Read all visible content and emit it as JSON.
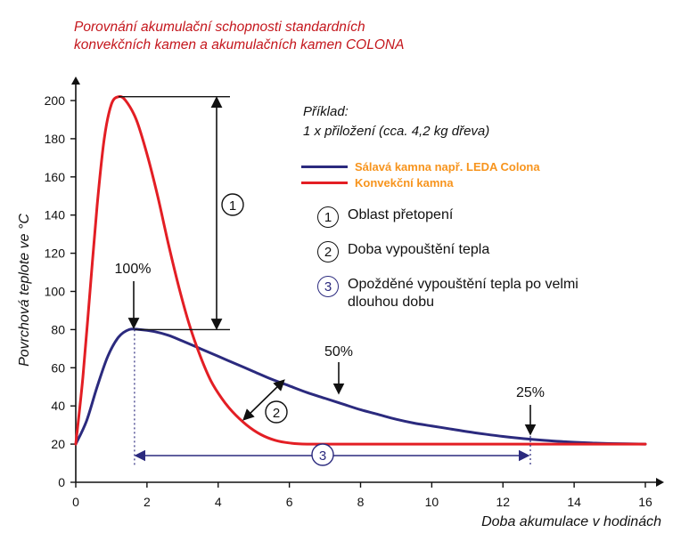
{
  "title_lines": [
    "Porovnání akumulační schopnosti standardních",
    "konvekčních kamen a akumulačních kamen COLONA"
  ],
  "colors": {
    "title": "#c4161c",
    "legend_text": "#f7941d",
    "navy": "#2b2a7e",
    "red": "#e31e24"
  },
  "example": {
    "line1": "Příklad:",
    "line2": "1 x přiložení (cca. 4,2 kg dřeva)"
  },
  "legend": [
    {
      "label": "Sálavá kamna např. LEDA Colona",
      "color": "#2b2a7e"
    },
    {
      "label": "Konvekční kamna",
      "color": "#e31e24"
    }
  ],
  "notes": [
    {
      "num": "1",
      "text": "Oblast přetopení"
    },
    {
      "num": "2",
      "text": "Doba vypouštění tepla"
    },
    {
      "num": "3",
      "text": "Opožděné vypouštění tepla po velmi dlouhou dobu"
    }
  ],
  "annotations": {
    "pct100": "100%",
    "pct50": "50%",
    "pct25": "25%",
    "mark1": "1",
    "mark2": "2",
    "mark3": "3"
  },
  "chart_data": {
    "type": "line",
    "xlabel": "Doba akumulace v hodinách",
    "ylabel": "Povrchová teplote ve °C",
    "xlim": [
      0,
      16
    ],
    "ylim": [
      0,
      200
    ],
    "xticks": [
      0,
      2,
      4,
      6,
      8,
      10,
      12,
      14,
      16
    ],
    "yticks": [
      0,
      20,
      40,
      60,
      80,
      100,
      120,
      140,
      160,
      180,
      200
    ],
    "grid": false,
    "series": [
      {
        "name": "Sálavá kamna např. LEDA Colona",
        "color": "#2b2a7e",
        "points": [
          [
            0,
            20
          ],
          [
            0.3,
            32
          ],
          [
            0.6,
            50
          ],
          [
            0.9,
            66
          ],
          [
            1.2,
            76
          ],
          [
            1.5,
            80
          ],
          [
            1.8,
            80
          ],
          [
            2.2,
            79
          ],
          [
            2.6,
            77
          ],
          [
            3,
            74
          ],
          [
            3.5,
            70
          ],
          [
            4,
            66
          ],
          [
            4.5,
            62
          ],
          [
            5,
            58
          ],
          [
            5.5,
            54
          ],
          [
            6,
            50.5
          ],
          [
            6.5,
            47
          ],
          [
            7,
            44
          ],
          [
            7.5,
            41
          ],
          [
            8,
            38
          ],
          [
            8.5,
            35.5
          ],
          [
            9,
            33
          ],
          [
            9.5,
            31
          ],
          [
            10,
            29.5
          ],
          [
            10.5,
            28
          ],
          [
            11,
            26.5
          ],
          [
            11.5,
            25.2
          ],
          [
            12,
            24
          ],
          [
            12.5,
            23
          ],
          [
            13,
            22.2
          ],
          [
            13.5,
            21.5
          ],
          [
            14,
            21
          ],
          [
            14.5,
            20.6
          ],
          [
            15,
            20.3
          ],
          [
            16,
            20
          ]
        ]
      },
      {
        "name": "Konvekční kamna",
        "color": "#e31e24",
        "points": [
          [
            0,
            20
          ],
          [
            0.2,
            55
          ],
          [
            0.4,
            100
          ],
          [
            0.6,
            145
          ],
          [
            0.8,
            180
          ],
          [
            1,
            198
          ],
          [
            1.2,
            202
          ],
          [
            1.4,
            200
          ],
          [
            1.7,
            190
          ],
          [
            2,
            172
          ],
          [
            2.3,
            150
          ],
          [
            2.6,
            125
          ],
          [
            2.9,
            102
          ],
          [
            3.2,
            82
          ],
          [
            3.5,
            66
          ],
          [
            3.8,
            53
          ],
          [
            4.1,
            44
          ],
          [
            4.4,
            37
          ],
          [
            4.8,
            30
          ],
          [
            5.2,
            25
          ],
          [
            5.6,
            22
          ],
          [
            6,
            20.6
          ],
          [
            6.5,
            20
          ],
          [
            8,
            20
          ],
          [
            10,
            20
          ],
          [
            12,
            20
          ],
          [
            14,
            20
          ],
          [
            16,
            20
          ]
        ]
      }
    ]
  }
}
